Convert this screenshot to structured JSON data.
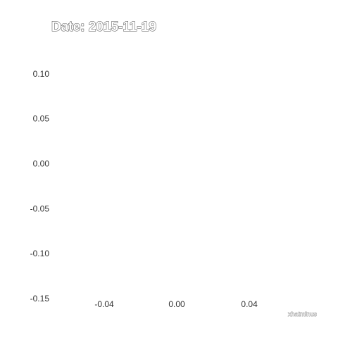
{
  "chart_data": {
    "type": "scatter",
    "title": "Date: 2015-11-19",
    "xlabel": "xhatminus",
    "ylabel": "",
    "xlim": [
      -0.08,
      0.085
    ],
    "ylim": [
      -0.15,
      0.11
    ],
    "x_ticks": [
      "-0.04",
      "0.00",
      "0.04"
    ],
    "y_ticks": [
      "0.10",
      "0.05",
      "0.00",
      "-0.05",
      "-0.10",
      "-0.15"
    ],
    "grid": false,
    "series": [],
    "colors": {
      "text": "#333333",
      "title_outline": "#555555"
    }
  }
}
